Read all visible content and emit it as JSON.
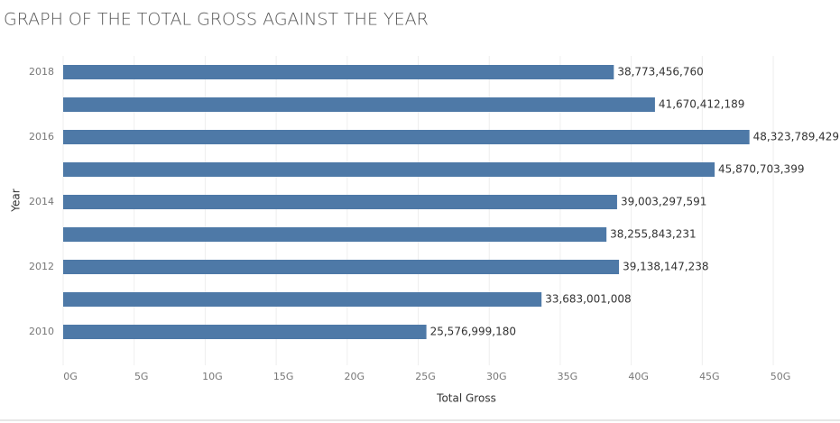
{
  "chart_data": {
    "type": "hbar",
    "title": "GRAPH OF THE TOTAL GROSS AGAINST THE YEAR",
    "y_label": "Year",
    "x_label": "Total Gross",
    "categories": [
      "2018",
      null,
      "2016",
      null,
      "2014",
      null,
      "2012",
      null,
      "2010"
    ],
    "values": [
      38773456760,
      41670412189,
      48323789429,
      45870703399,
      39003297591,
      38255843231,
      39138147238,
      33683001008,
      25576999180
    ],
    "value_labels": [
      "38,773,456,760",
      "41,670,412,189",
      "48,323,789,429",
      "45,870,703,399",
      "39,003,297,591",
      "38,255,843,231",
      "39,138,147,238",
      "33,683,001,008",
      "25,576,999,180"
    ],
    "color": "#4e79a7",
    "xlim": [
      0,
      54000000000
    ],
    "xticks": [
      {
        "value": 0,
        "label": "0G"
      },
      {
        "value": 5000000000,
        "label": "5G"
      },
      {
        "value": 10000000000,
        "label": "10G"
      },
      {
        "value": 15000000000,
        "label": "15G"
      },
      {
        "value": 20000000000,
        "label": "20G"
      },
      {
        "value": 25000000000,
        "label": "25G"
      },
      {
        "value": 30000000000,
        "label": "30G"
      },
      {
        "value": 35000000000,
        "label": "35G"
      },
      {
        "value": 40000000000,
        "label": "40G"
      },
      {
        "value": 45000000000,
        "label": "45G"
      },
      {
        "value": 50000000000,
        "label": "50G"
      }
    ],
    "grid": true
  }
}
